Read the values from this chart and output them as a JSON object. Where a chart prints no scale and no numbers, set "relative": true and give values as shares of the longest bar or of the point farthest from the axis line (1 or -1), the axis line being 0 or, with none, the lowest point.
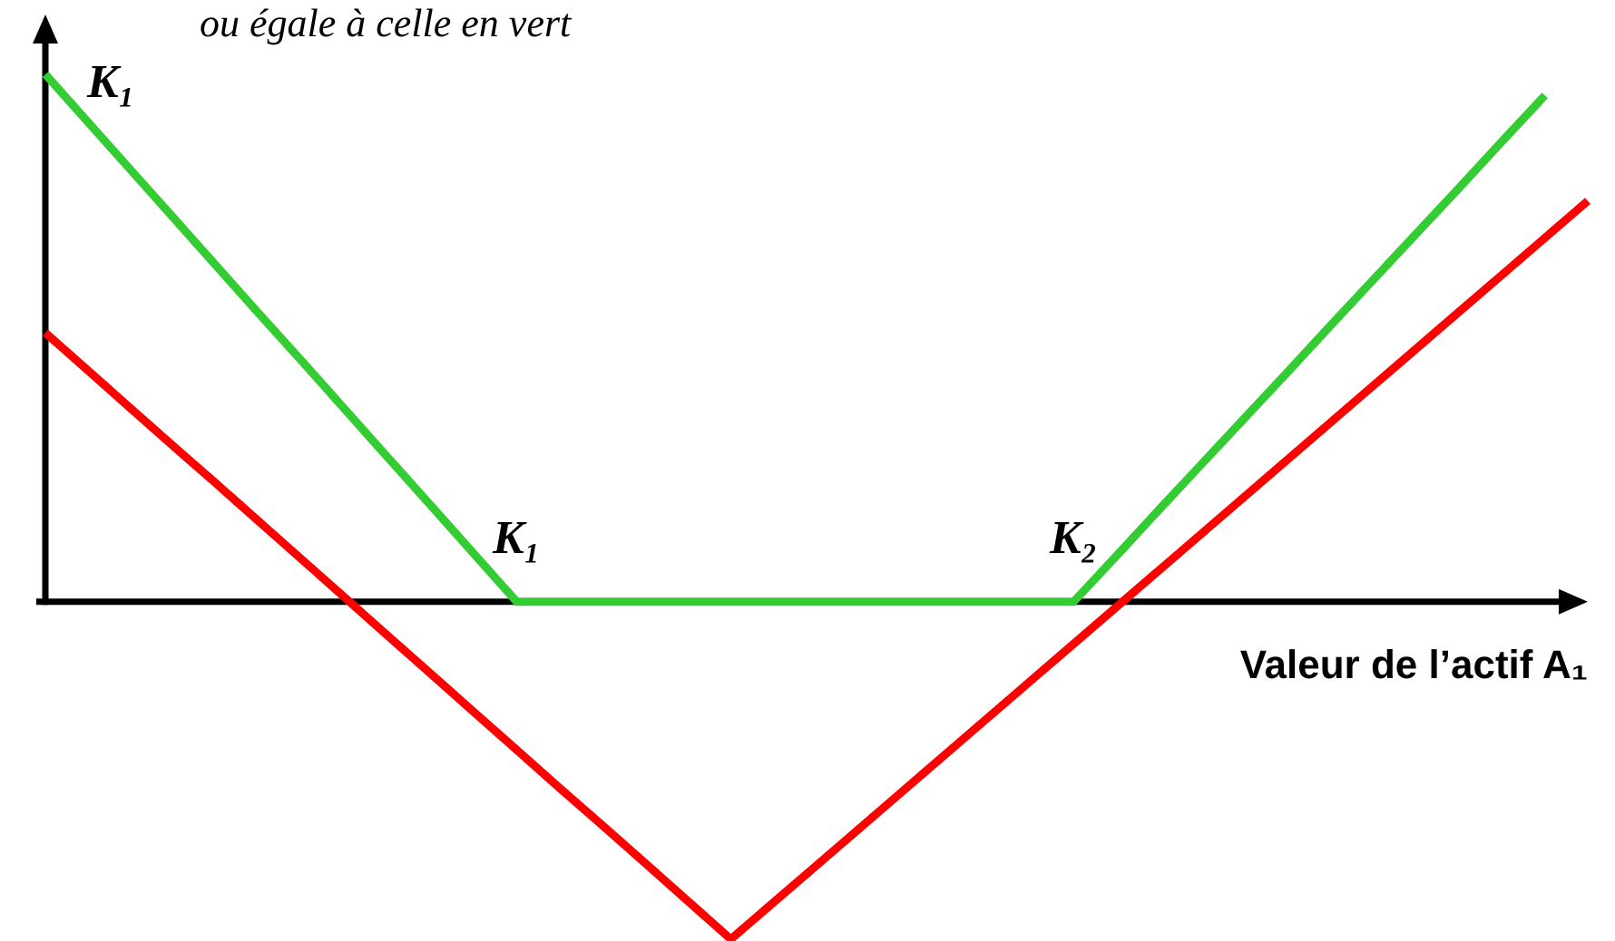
{
  "chart_data": {
    "type": "line",
    "relative": true,
    "xlabel": "Valeur de l’actif A₁",
    "ylabel": "K₁",
    "categories": [
      null,
      null,
      null,
      null,
      null,
      null,
      null,
      null,
      null,
      null,
      null,
      "K₁",
      null,
      null,
      null,
      null,
      null,
      null,
      null,
      null,
      null,
      null,
      null,
      null,
      "K₂",
      null,
      null,
      null,
      null,
      null,
      null,
      null,
      null,
      null,
      null,
      null,
      null
    ],
    "series": [
      {
        "color": "#33cc33",
        "values": [
          1,
          0.909,
          0.818,
          0.727,
          0.636,
          0.545,
          0.455,
          0.364,
          0.273,
          0.182,
          0.091,
          0,
          0,
          0,
          0,
          0,
          0,
          0,
          0,
          0,
          0,
          0,
          0,
          0,
          0,
          0.087,
          0.175,
          0.262,
          0.349,
          0.436,
          0.524,
          0.611,
          0.698,
          0.785,
          0.873,
          0.96,
          null
        ]
      },
      {
        "color": "#ff0000",
        "values": [
          0.51,
          0.438,
          0.366,
          0.294,
          0.223,
          0.151,
          0.079,
          0.007,
          -0.065,
          -0.137,
          -0.209,
          -0.281,
          -0.353,
          -0.424,
          -0.496,
          -0.568,
          -0.64,
          -0.57,
          -0.5,
          -0.43,
          -0.36,
          -0.29,
          -0.22,
          -0.15,
          -0.08,
          -0.01,
          0.06,
          0.13,
          0.2,
          0.27,
          0.34,
          0.41,
          0.48,
          0.55,
          0.62,
          0.69,
          0.76
        ]
      }
    ],
    "annotations": [
      "ou égale à celle en vert"
    ]
  }
}
